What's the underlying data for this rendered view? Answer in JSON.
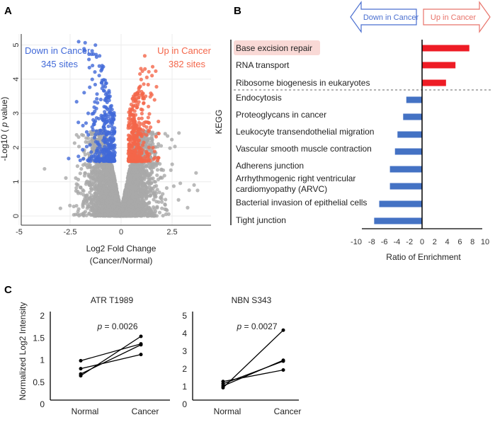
{
  "panels": {
    "a": "A",
    "b": "B",
    "c": "C"
  },
  "chart_data": [
    {
      "type": "scatter",
      "panel": "A",
      "xlabel": "Log2 Fold Change",
      "xlabel2": "(Cancer/Normal)",
      "ylabel_prefix": "-Log10 ( ",
      "ylabel_italic": "p",
      "ylabel_suffix": " value)",
      "xlim": [
        -5.2,
        4.4
      ],
      "ylim": [
        -0.1,
        5.3
      ],
      "xticks": [
        "-5",
        "-2.5",
        "0",
        "2.5"
      ],
      "xtick_values": [
        -5,
        -2.5,
        0,
        2.5
      ],
      "yticks": [
        "0",
        "1",
        "2",
        "3",
        "4",
        "5"
      ],
      "grid": true,
      "groups": [
        {
          "label": "Down in Cancer",
          "count_label": "345 sites",
          "count": 345,
          "color": "#4169d8"
        },
        {
          "label": "Up in Cancer",
          "count_label": "382 sites",
          "count": 382,
          "color": "#f4664a"
        },
        {
          "label": "",
          "color": "#a9a9a9"
        }
      ]
    },
    {
      "type": "bar",
      "panel": "B",
      "orientation": "horizontal",
      "ylabel": "KEGG",
      "xlabel": "Ratio of Enrichment",
      "xlim": [
        -10,
        10
      ],
      "xticks": [
        "-10",
        "-8",
        "-6",
        "-4",
        "-2",
        "0",
        "2",
        "4",
        "6",
        "8",
        "10"
      ],
      "legend_arrows": {
        "down": "Down in Cancer",
        "up": "Up in Cancer",
        "down_color": "#4a6fd0",
        "up_color": "#e8736a"
      },
      "up_color": "#ee1c25",
      "down_color": "#4472c4",
      "highlight_color": "#f9d9d6",
      "categories": [
        [
          "Base excision repair"
        ],
        [
          "RNA transport"
        ],
        [
          "Ribosome biogenesis in eukaryotes"
        ],
        [
          "Endocytosis"
        ],
        [
          "Proteoglycans in cancer"
        ],
        [
          "Leukocyte transendothelial migration"
        ],
        [
          "Vascular smooth muscle contraction"
        ],
        [
          "Adherens junction"
        ],
        [
          "Arrhythmogenic right ventricular",
          "cardiomyopathy (ARVC)"
        ],
        [
          "Bacterial invasion of epithelial cells"
        ],
        [
          "Tight junction"
        ]
      ],
      "values": [
        7.5,
        5.3,
        3.8,
        -2.5,
        -3.0,
        -3.9,
        -4.3,
        -5.1,
        -5.1,
        -6.8,
        -7.6
      ],
      "highlighted": [
        "Base excision repair"
      ]
    },
    {
      "type": "line",
      "panel": "C",
      "title": "ATR T1989",
      "ylabel": "Normalized Log2 Intensity",
      "annotation_italic": "p",
      "annotation": " = 0.0026",
      "categories": [
        "Normal",
        "Cancer"
      ],
      "ylim": [
        0,
        2
      ],
      "yticks": [
        "0",
        "0.5",
        "1",
        "1.5",
        "2"
      ],
      "ytick_values": [
        0,
        0.5,
        1,
        1.5,
        2
      ],
      "series": [
        {
          "values": [
            0.97,
            1.35
          ]
        },
        {
          "values": [
            0.79,
            1.11
          ]
        },
        {
          "values": [
            0.67,
            1.33
          ]
        },
        {
          "values": [
            0.63,
            1.52
          ]
        }
      ]
    },
    {
      "type": "line",
      "panel": "C",
      "title": "NBN S343",
      "annotation_italic": "p",
      "annotation": " = 0.0027",
      "categories": [
        "Normal",
        "Cancer"
      ],
      "ylim": [
        0,
        5
      ],
      "yticks": [
        "0",
        "1",
        "2",
        "3",
        "4",
        "5"
      ],
      "ytick_values": [
        0,
        1,
        2,
        3,
        4,
        5
      ],
      "series": [
        {
          "values": [
            0.9,
            4.15
          ]
        },
        {
          "values": [
            1.0,
            2.45
          ]
        },
        {
          "values": [
            1.12,
            2.4
          ]
        },
        {
          "values": [
            1.25,
            1.9
          ]
        }
      ]
    }
  ]
}
